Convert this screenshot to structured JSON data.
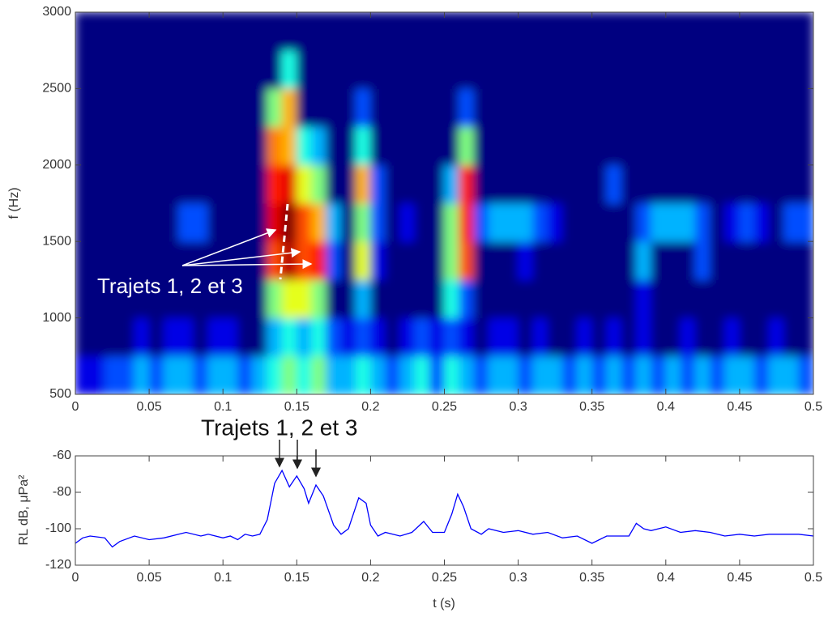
{
  "chart_data": [
    {
      "type": "heatmap",
      "colormap": "jet",
      "ylabel": "f (Hz)",
      "annotation": "Trajets 1, 2 et 3",
      "xlim": [
        0,
        0.5
      ],
      "ylim": [
        500,
        3000
      ],
      "xticks": [
        0,
        0.05,
        0.1,
        0.15,
        0.2,
        0.25,
        0.3,
        0.35,
        0.4,
        0.45,
        0.5
      ],
      "yticks": [
        500,
        1000,
        1500,
        2000,
        2500,
        3000
      ],
      "xbins": [
        0,
        0.01,
        0.02,
        0.03,
        0.04,
        0.05,
        0.06,
        0.07,
        0.08,
        0.09,
        0.1,
        0.11,
        0.12,
        0.13,
        0.14,
        0.15,
        0.16,
        0.17,
        0.18,
        0.19,
        0.2,
        0.21,
        0.22,
        0.23,
        0.24,
        0.25,
        0.26,
        0.27,
        0.28,
        0.29,
        0.3,
        0.31,
        0.32,
        0.33,
        0.34,
        0.35,
        0.36,
        0.37,
        0.38,
        0.39,
        0.4,
        0.41,
        0.42,
        0.43,
        0.44,
        0.45,
        0.46,
        0.47,
        0.48,
        0.49,
        0.5
      ],
      "ybins": [
        500,
        750,
        1000,
        1250,
        1500,
        1750,
        2000,
        2250,
        2500,
        2750,
        3000
      ],
      "z": [
        [
          0.1,
          0.1,
          0.2,
          0.2,
          0.3,
          0.2,
          0.3,
          0.3,
          0.2,
          0.3,
          0.3,
          0.2,
          0.3,
          0.4,
          0.5,
          0.4,
          0.5,
          0.3,
          0.3,
          0.4,
          0.3,
          0.2,
          0.3,
          0.4,
          0.2,
          0.4,
          0.3,
          0.2,
          0.3,
          0.3,
          0.2,
          0.3,
          0.3,
          0.2,
          0.3,
          0.2,
          0.3,
          0.2,
          0.3,
          0.2,
          0.3,
          0.2,
          0.3,
          0.2,
          0.3,
          0.3,
          0.2,
          0.3,
          0.3,
          0.2
        ],
        [
          0,
          0,
          0,
          0,
          0.1,
          0,
          0.1,
          0.1,
          0,
          0.1,
          0.1,
          0,
          0,
          0.3,
          0.4,
          0.3,
          0.4,
          0.2,
          0.1,
          0.2,
          0.1,
          0,
          0.1,
          0.2,
          0.1,
          0.2,
          0.1,
          0,
          0.1,
          0.1,
          0,
          0.1,
          0,
          0,
          0.1,
          0,
          0.1,
          0,
          0.1,
          0,
          0,
          0.1,
          0,
          0,
          0.1,
          0,
          0,
          0.1,
          0,
          0
        ],
        [
          0,
          0,
          0,
          0,
          0,
          0,
          0,
          0,
          0,
          0,
          0,
          0,
          0,
          0.5,
          0.6,
          0.6,
          0.5,
          0,
          0,
          0.3,
          0,
          0,
          0,
          0,
          0,
          0.4,
          0.2,
          0,
          0,
          0,
          0,
          0,
          0,
          0,
          0,
          0,
          0,
          0,
          0.1,
          0,
          0,
          0,
          0,
          0,
          0,
          0,
          0,
          0,
          0,
          0
        ],
        [
          0,
          0,
          0,
          0,
          0,
          0,
          0,
          0,
          0,
          0,
          0,
          0,
          0,
          0.8,
          0.95,
          0.8,
          0.85,
          0.2,
          0,
          0.6,
          0.1,
          0,
          0,
          0,
          0,
          0.5,
          0.8,
          0,
          0,
          0,
          0.1,
          0,
          0,
          0,
          0,
          0,
          0,
          0,
          0.3,
          0,
          0,
          0,
          0.2,
          0,
          0,
          0,
          0,
          0,
          0,
          0
        ],
        [
          0,
          0,
          0,
          0,
          0,
          0,
          0,
          0.2,
          0.2,
          0,
          0,
          0,
          0,
          0.9,
          1,
          0.8,
          0.7,
          0.3,
          0,
          0.5,
          0.2,
          0,
          0.1,
          0,
          0,
          0.5,
          0.85,
          0.2,
          0.3,
          0.3,
          0.3,
          0.2,
          0.1,
          0,
          0,
          0,
          0,
          0,
          0.2,
          0.3,
          0.3,
          0.3,
          0.2,
          0,
          0.1,
          0.2,
          0.1,
          0,
          0.2,
          0.2
        ],
        [
          0,
          0,
          0,
          0,
          0,
          0,
          0,
          0,
          0,
          0,
          0,
          0,
          0,
          0.85,
          0.9,
          0.6,
          0.5,
          0,
          0,
          0.7,
          0.2,
          0,
          0,
          0,
          0,
          0.3,
          0.85,
          0,
          0,
          0,
          0,
          0,
          0,
          0,
          0,
          0,
          0.2,
          0,
          0,
          0,
          0,
          0,
          0,
          0,
          0,
          0,
          0,
          0,
          0,
          0
        ],
        [
          0,
          0,
          0,
          0,
          0,
          0,
          0,
          0,
          0,
          0,
          0,
          0,
          0,
          0.75,
          0.7,
          0.4,
          0.3,
          0,
          0,
          0.4,
          0,
          0,
          0,
          0,
          0,
          0,
          0.5,
          0,
          0,
          0,
          0,
          0,
          0,
          0,
          0,
          0,
          0,
          0,
          0,
          0,
          0,
          0,
          0,
          0,
          0,
          0,
          0,
          0,
          0,
          0
        ],
        [
          0,
          0,
          0,
          0,
          0,
          0,
          0,
          0,
          0,
          0,
          0,
          0,
          0,
          0.5,
          0.7,
          0,
          0,
          0,
          0,
          0.2,
          0,
          0,
          0,
          0,
          0,
          0,
          0.2,
          0,
          0,
          0,
          0,
          0,
          0,
          0,
          0,
          0,
          0,
          0,
          0,
          0,
          0,
          0,
          0,
          0,
          0,
          0,
          0,
          0,
          0,
          0
        ],
        [
          0,
          0,
          0,
          0,
          0,
          0,
          0,
          0,
          0,
          0,
          0,
          0,
          0,
          0,
          0.4,
          0,
          0,
          0,
          0,
          0,
          0,
          0,
          0,
          0,
          0,
          0,
          0,
          0,
          0,
          0,
          0,
          0,
          0,
          0,
          0,
          0,
          0,
          0,
          0,
          0,
          0,
          0,
          0,
          0,
          0,
          0,
          0,
          0,
          0,
          0
        ],
        [
          0,
          0,
          0,
          0,
          0,
          0,
          0,
          0,
          0,
          0,
          0,
          0,
          0,
          0,
          0,
          0,
          0,
          0,
          0,
          0,
          0,
          0,
          0,
          0,
          0,
          0,
          0,
          0,
          0,
          0,
          0,
          0,
          0,
          0,
          0,
          0,
          0,
          0,
          0,
          0,
          0,
          0,
          0,
          0,
          0,
          0,
          0,
          0,
          0,
          0
        ]
      ]
    },
    {
      "type": "line",
      "xlabel": "t (s)",
      "ylabel": "RL dB, μPa²",
      "annotation": "Trajets 1, 2 et 3",
      "color": "#0000ff",
      "xlim": [
        0,
        0.5
      ],
      "ylim": [
        -120,
        -60
      ],
      "xticks": [
        0,
        0.05,
        0.1,
        0.15,
        0.2,
        0.25,
        0.3,
        0.35,
        0.4,
        0.45,
        0.5
      ],
      "yticks": [
        -120,
        -100,
        -80,
        -60
      ],
      "x": [
        0,
        0.005,
        0.01,
        0.02,
        0.025,
        0.03,
        0.04,
        0.05,
        0.06,
        0.07,
        0.075,
        0.085,
        0.09,
        0.1,
        0.105,
        0.11,
        0.115,
        0.12,
        0.125,
        0.13,
        0.135,
        0.14,
        0.145,
        0.15,
        0.155,
        0.158,
        0.163,
        0.168,
        0.175,
        0.18,
        0.185,
        0.192,
        0.197,
        0.2,
        0.205,
        0.21,
        0.22,
        0.228,
        0.236,
        0.242,
        0.25,
        0.255,
        0.259,
        0.263,
        0.268,
        0.275,
        0.28,
        0.29,
        0.3,
        0.31,
        0.32,
        0.33,
        0.34,
        0.35,
        0.36,
        0.37,
        0.375,
        0.38,
        0.385,
        0.39,
        0.4,
        0.41,
        0.42,
        0.43,
        0.44,
        0.45,
        0.46,
        0.47,
        0.48,
        0.49,
        0.5
      ],
      "y": [
        -108,
        -105,
        -104,
        -105,
        -110,
        -107,
        -104,
        -106,
        -105,
        -103,
        -102,
        -104,
        -103,
        -105,
        -104,
        -106,
        -103,
        -104,
        -103,
        -95,
        -75,
        -68,
        -77,
        -71,
        -78,
        -86,
        -76,
        -82,
        -98,
        -103,
        -100,
        -83,
        -86,
        -98,
        -104,
        -102,
        -104,
        -102,
        -96,
        -102,
        -102,
        -92,
        -81,
        -88,
        -100,
        -103,
        -100,
        -102,
        -101,
        -103,
        -102,
        -105,
        -104,
        -108,
        -104,
        -104,
        -104,
        -97,
        -100,
        -101,
        -99,
        -102,
        -101,
        -102,
        -104,
        -103,
        -104,
        -103,
        -103,
        -103,
        -104
      ]
    }
  ]
}
